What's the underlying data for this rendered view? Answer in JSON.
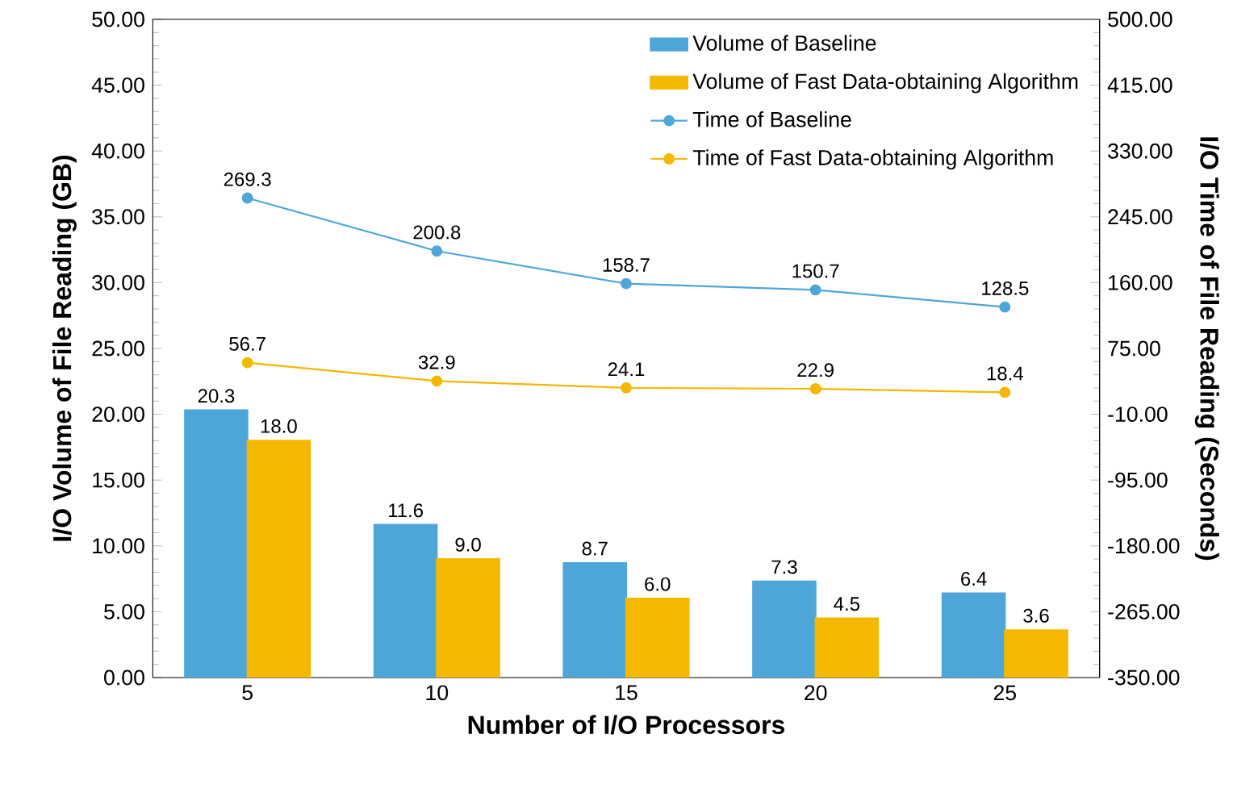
{
  "chart_data": {
    "type": "bar",
    "xlabel": "Number of I/O Processors",
    "ylabel": "I/O Volume of File Reading (GB)",
    "y2label": "I/O Time of File Reading (Seconds)",
    "categories": [
      "5",
      "10",
      "15",
      "20",
      "25"
    ],
    "series": [
      {
        "name": "Volume of Baseline",
        "color": "#4ea6d8",
        "values": [
          20.3,
          11.6,
          8.7,
          7.3,
          6.4
        ],
        "value_labels": [
          "20.3",
          "11.6",
          "8.7",
          "7.3",
          "6.4"
        ]
      },
      {
        "name": "Volume of Fast Data-obtaining Algorithm",
        "color": "#f5b800",
        "values": [
          18.0,
          9.0,
          6.0,
          4.5,
          3.6
        ],
        "value_labels": [
          "18.0",
          "9.0",
          "6.0",
          "4.5",
          "3.6"
        ]
      },
      {
        "name": "Time of Baseline",
        "type": "line",
        "axis": "y2",
        "color": "#4ea6d8",
        "values": [
          269.3,
          200.8,
          158.7,
          150.7,
          128.5
        ],
        "value_labels": [
          "269.3",
          "200.8",
          "158.7",
          "150.7",
          "128.5"
        ]
      },
      {
        "name": "Time of Fast Data-obtaining Algorithm",
        "type": "line",
        "axis": "y2",
        "color": "#f5b800",
        "values": [
          56.7,
          32.9,
          24.1,
          22.9,
          18.4
        ],
        "value_labels": [
          "56.7",
          "32.9",
          "24.1",
          "22.9",
          "18.4"
        ]
      }
    ],
    "ylim": [
      0,
      50
    ],
    "yticks": [
      {
        "value": 0,
        "label": "0.00"
      },
      {
        "value": 5,
        "label": "5.00"
      },
      {
        "value": 10,
        "label": "10.00"
      },
      {
        "value": 15,
        "label": "15.00"
      },
      {
        "value": 20,
        "label": "20.00"
      },
      {
        "value": 25,
        "label": "25.00"
      },
      {
        "value": 30,
        "label": "30.00"
      },
      {
        "value": 35,
        "label": "35.00"
      },
      {
        "value": 40,
        "label": "40.00"
      },
      {
        "value": 45,
        "label": "45.00"
      },
      {
        "value": 50,
        "label": "50.00"
      }
    ],
    "y2lim": [
      -350,
      500
    ],
    "y2ticks": [
      {
        "value": -350,
        "label": "-350.00"
      },
      {
        "value": -265,
        "label": "-265.00"
      },
      {
        "value": -180,
        "label": "-180.00"
      },
      {
        "value": -95,
        "label": "-95.00"
      },
      {
        "value": -10,
        "label": "-10.00"
      },
      {
        "value": 75,
        "label": "75.00"
      },
      {
        "value": 160,
        "label": "160.00"
      },
      {
        "value": 245,
        "label": "245.00"
      },
      {
        "value": 330,
        "label": "330.00"
      },
      {
        "value": 415,
        "label": "415.00"
      },
      {
        "value": 500,
        "label": "500.00"
      }
    ],
    "legend": "top right",
    "marker": "circle",
    "line_style": "solid"
  }
}
